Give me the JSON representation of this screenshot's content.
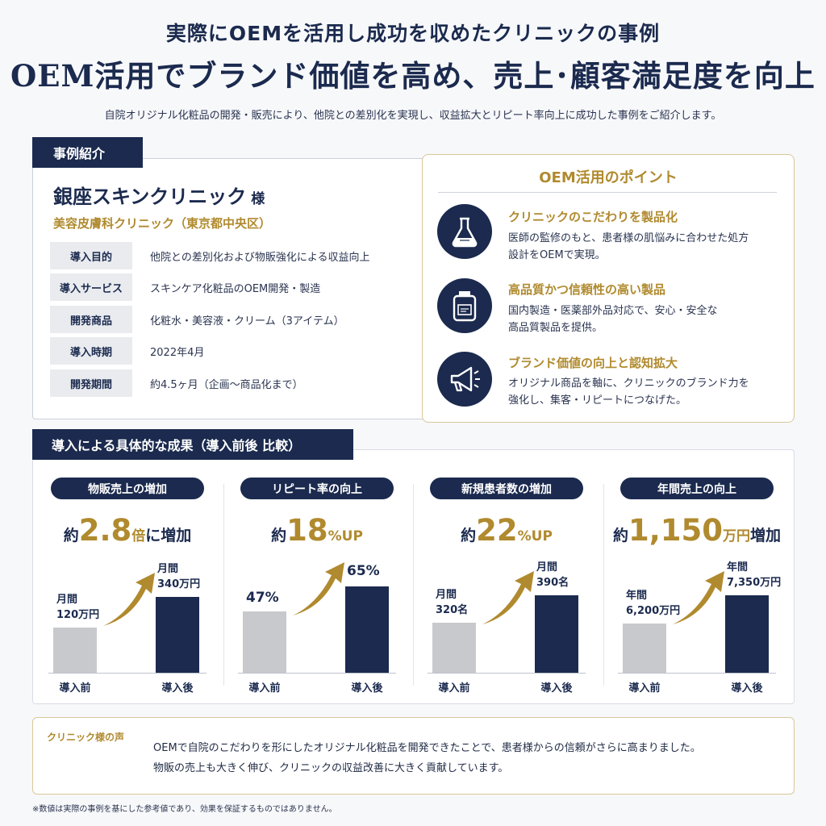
{
  "header": {
    "subtitle": "実際にOEMを活用し成功を収めたクリニックの事例",
    "title": "OEM活用でブランド価値を高め、売上･顧客満足度を向上",
    "description": "自院オリジナル化粧品の開発・販売により、他院との差別化を実現し、収益拡大とリピート率向上に成功した事例をご紹介します。"
  },
  "case": {
    "tag": "事例紹介",
    "clinic_name": "銀座スキンクリニック",
    "clinic_suffix": "様",
    "clinic_type": "美容皮膚科クリニック（東京都中央区）",
    "rows": [
      {
        "key": "導入目的",
        "value": "他院との差別化および物販強化による収益向上"
      },
      {
        "key": "導入サービス",
        "value": "スキンケア化粧品のOEM開発・製造"
      },
      {
        "key": "開発商品",
        "value": "化粧水・美容液・クリーム（3アイテム）"
      },
      {
        "key": "導入時期",
        "value": "2022年4月"
      },
      {
        "key": "開発期間",
        "value": "約4.5ヶ月（企画〜商品化まで）"
      }
    ]
  },
  "points": {
    "title": "OEM活用のポイント",
    "items": [
      {
        "icon": "flask-icon",
        "heading": "クリニックのこだわりを製品化",
        "body_1": "医師の監修のもと、患者様の肌悩みに合わせた処方",
        "body_2": "設計をOEMで実現。"
      },
      {
        "icon": "product-bottle-icon",
        "heading": "高品質かつ信頼性の高い製品",
        "body_1": "国内製造・医薬部外品対応で、安心・安全な",
        "body_2": "高品質製品を提供。"
      },
      {
        "icon": "megaphone-icon",
        "heading": "ブランド価値の向上と認知拡大",
        "body_1": "オリジナル商品を軸に、クリニックのブランド力を",
        "body_2": "強化し、集客・リピートにつなげた。"
      }
    ]
  },
  "results": {
    "tag": "導入による具体的な成果（導入前後 比較）",
    "before_label": "導入前",
    "after_label": "導入後",
    "columns": [
      {
        "pill": "物販売上の増加",
        "pre": "約",
        "big": "2.8",
        "unit": "倍",
        "post": "に増加",
        "before_line1": "月間",
        "before_line2": "120万円",
        "after_line1": "月間",
        "after_line2": "340万円",
        "before_value": 120,
        "after_value": 340
      },
      {
        "pill": "リピート率の向上",
        "pre": "約",
        "big": "18",
        "unit": "%UP",
        "post": "",
        "before_line1": "47%",
        "before_line2": "",
        "after_line1": "65%",
        "after_line2": "",
        "before_value": 47,
        "after_value": 65
      },
      {
        "pill": "新規患者数の増加",
        "pre": "約",
        "big": "22",
        "unit": "%UP",
        "post": "",
        "before_line1": "月間",
        "before_line2": "320名",
        "after_line1": "月間",
        "after_line2": "390名",
        "before_value": 320,
        "after_value": 390
      },
      {
        "pill": "年間売上の向上",
        "pre": "約",
        "big": "1,150",
        "unit": "万円",
        "post": "増加",
        "before_line1": "年間",
        "before_line2": "6,200万円",
        "after_line1": "年間",
        "after_line2": "7,350万円",
        "before_value": 6200,
        "after_value": 7350
      }
    ]
  },
  "voice": {
    "label": "クリニック様の声",
    "line_1": "OEMで自院のこだわりを形にしたオリジナル化粧品を開発できたことで、患者様からの信頼がさらに高まりました。",
    "line_2": "物販の売上も大きく伸び、クリニックの収益改善に大きく貢献しています。"
  },
  "footnote": "※数値は実際の事例を基にした参考値であり、効果を保証するものではありません。",
  "colors": {
    "navy": "#1b2a4e",
    "gold": "#b08a2e",
    "gray_bar": "#c8c9cc"
  }
}
